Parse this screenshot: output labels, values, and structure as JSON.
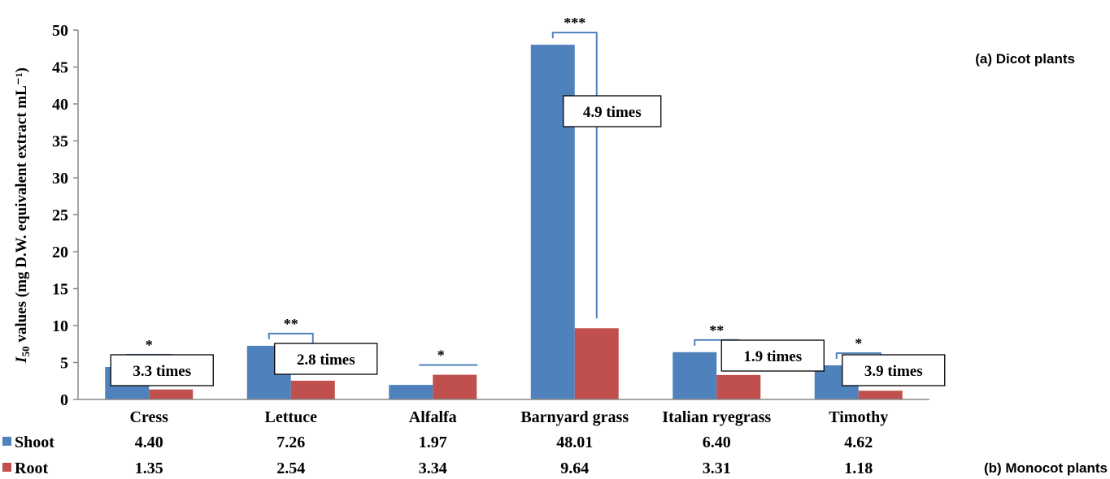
{
  "chart_data": {
    "type": "bar",
    "ylabel_italic": "I",
    "ylabel_sub": "50",
    "ylabel_rest": " values (mg D.W.  equivalent extract mL⁻¹)",
    "ylim": [
      0,
      50
    ],
    "yticks": [
      "0",
      "5",
      "10",
      "15",
      "20",
      "25",
      "30",
      "35",
      "40",
      "45",
      "50"
    ],
    "categories": [
      "Cress",
      "Lettuce",
      "Alfalfa",
      "Barnyard grass",
      "Italian ryegrass",
      "Timothy"
    ],
    "series": [
      {
        "name": "Shoot",
        "color": "#4F81BD",
        "values": [
          4.4,
          7.26,
          1.97,
          48.01,
          6.4,
          4.62
        ],
        "labels": [
          "4.40",
          "7.26",
          "1.97",
          "48.01",
          "6.40",
          "4.62"
        ]
      },
      {
        "name": "Root",
        "color": "#C0504D",
        "values": [
          1.35,
          2.54,
          3.34,
          9.64,
          3.31,
          1.18
        ],
        "labels": [
          "1.35",
          "2.54",
          "3.34",
          "9.64",
          "3.31",
          "1.18"
        ]
      }
    ],
    "annotations": {
      "dicot": "(a) Dicot plants",
      "monocot": "(b) Monocot plants",
      "significance": [
        "*",
        "**",
        "*",
        "***",
        "**",
        "*"
      ],
      "fold_labels": [
        "3.3 times",
        "2.8 times",
        "",
        "4.9  times",
        "1.9 times",
        "3.9 times"
      ]
    }
  }
}
